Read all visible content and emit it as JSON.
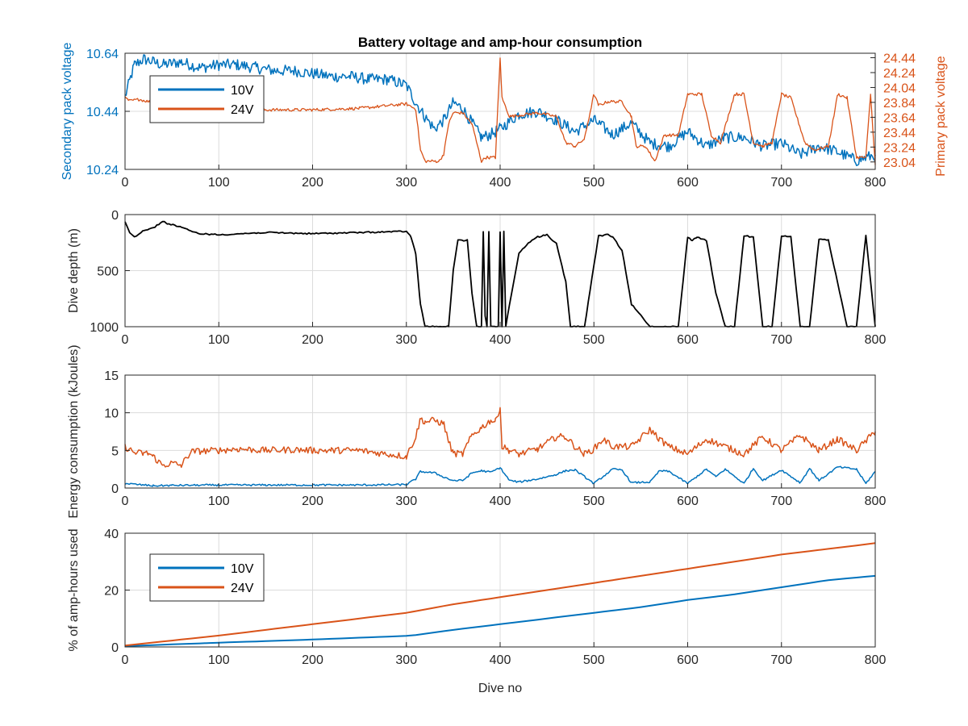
{
  "figure": {
    "title": "Battery voltage and amp-hour consumption",
    "x_axis_label": "Dive no"
  },
  "colors": {
    "series_10v": "#0072BD",
    "series_24v": "#D95319",
    "depth": "#000000",
    "axis": "#262626",
    "grid": "#dcdcdc"
  },
  "chart_data": [
    {
      "type": "line",
      "id": "voltage",
      "title": "Battery voltage and amp-hour consumption",
      "xlabel": "",
      "ylabel": "Secondary pack voltage",
      "ylabel_right": "Primary pack voltage",
      "xlim": [
        0,
        800
      ],
      "ylim": [
        10.24,
        10.64
      ],
      "ylim_right": [
        22.94,
        24.5
      ],
      "xticks": [
        0,
        100,
        200,
        300,
        400,
        500,
        600,
        700,
        800
      ],
      "yticks": [
        10.24,
        10.44,
        10.64
      ],
      "yticks_right": [
        23.04,
        23.24,
        23.44,
        23.64,
        23.84,
        24.04,
        24.24,
        24.44
      ],
      "grid": true,
      "legend": {
        "position": "top-left",
        "entries": [
          "10V",
          "24V"
        ]
      },
      "series": [
        {
          "name": "10V",
          "axis": "left",
          "x": [
            0,
            10,
            20,
            40,
            60,
            80,
            100,
            120,
            140,
            160,
            180,
            200,
            220,
            240,
            260,
            280,
            300,
            310,
            320,
            330,
            340,
            350,
            360,
            370,
            380,
            390,
            400,
            420,
            440,
            460,
            480,
            500,
            520,
            540,
            560,
            580,
            600,
            620,
            640,
            660,
            680,
            700,
            720,
            740,
            760,
            780,
            800
          ],
          "y": [
            10.49,
            10.6,
            10.62,
            10.6,
            10.61,
            10.59,
            10.6,
            10.6,
            10.59,
            10.58,
            10.58,
            10.57,
            10.56,
            10.56,
            10.55,
            10.55,
            10.53,
            10.47,
            10.42,
            10.38,
            10.41,
            10.47,
            10.45,
            10.4,
            10.35,
            10.36,
            10.38,
            10.43,
            10.44,
            10.41,
            10.37,
            10.41,
            10.36,
            10.4,
            10.33,
            10.32,
            10.37,
            10.32,
            10.35,
            10.35,
            10.32,
            10.33,
            10.29,
            10.32,
            10.3,
            10.27,
            10.29
          ]
        },
        {
          "name": "24V",
          "axis": "right",
          "x": [
            0,
            5,
            15,
            60,
            100,
            150,
            200,
            250,
            300,
            310,
            315,
            320,
            335,
            340,
            345,
            350,
            360,
            370,
            380,
            385,
            395,
            400,
            402,
            410,
            440,
            460,
            470,
            480,
            490,
            500,
            505,
            515,
            530,
            540,
            545,
            555,
            565,
            575,
            590,
            600,
            615,
            625,
            635,
            650,
            660,
            670,
            680,
            690,
            700,
            710,
            725,
            735,
            750,
            760,
            770,
            780,
            790,
            795,
            800
          ],
          "y": [
            23.9,
            23.86,
            23.88,
            23.75,
            23.74,
            23.74,
            23.74,
            23.76,
            23.82,
            23.75,
            23.2,
            23.05,
            23.05,
            23.15,
            23.55,
            23.7,
            23.7,
            23.55,
            23.05,
            23.1,
            23.1,
            24.44,
            23.9,
            23.65,
            23.7,
            23.65,
            23.3,
            23.25,
            23.35,
            23.95,
            23.8,
            23.85,
            23.85,
            23.65,
            23.25,
            23.25,
            23.05,
            23.4,
            23.4,
            23.95,
            23.95,
            23.4,
            23.3,
            23.95,
            23.95,
            23.3,
            23.25,
            23.3,
            23.95,
            23.9,
            23.3,
            23.2,
            23.25,
            23.95,
            23.9,
            23.1,
            23.1,
            23.95,
            23.0
          ]
        }
      ]
    },
    {
      "type": "line",
      "id": "depth",
      "xlabel": "",
      "ylabel": "Dive depth (m)",
      "xlim": [
        0,
        800
      ],
      "ylim": [
        0,
        1000
      ],
      "y_reversed": true,
      "xticks": [
        0,
        100,
        200,
        300,
        400,
        500,
        600,
        700,
        800
      ],
      "yticks": [
        0,
        500,
        1000
      ],
      "grid": true,
      "series": [
        {
          "x": [
            0,
            5,
            10,
            15,
            20,
            30,
            40,
            45,
            60,
            70,
            80,
            100,
            150,
            200,
            250,
            300,
            305,
            310,
            315,
            320,
            330,
            340,
            345,
            350,
            355,
            365,
            370,
            375,
            380,
            382,
            384,
            386,
            388,
            390,
            392,
            395,
            398,
            400,
            402,
            404,
            406,
            410,
            420,
            430,
            440,
            450,
            460,
            470,
            475,
            490,
            500,
            505,
            515,
            520,
            530,
            540,
            560,
            570,
            590,
            595,
            600,
            605,
            610,
            620,
            630,
            640,
            650,
            660,
            670,
            680,
            690,
            700,
            710,
            720,
            730,
            740,
            750,
            770,
            780,
            790,
            800
          ],
          "y": [
            60,
            160,
            200,
            170,
            140,
            120,
            60,
            80,
            110,
            150,
            170,
            180,
            160,
            170,
            160,
            150,
            200,
            350,
            800,
            1000,
            1000,
            1000,
            1000,
            500,
            230,
            230,
            700,
            1000,
            1000,
            150,
            900,
            1000,
            150,
            1000,
            1000,
            1000,
            1000,
            150,
            1000,
            150,
            1000,
            800,
            350,
            250,
            200,
            180,
            260,
            600,
            1000,
            1000,
            450,
            190,
            180,
            200,
            320,
            800,
            1000,
            1000,
            1000,
            600,
            200,
            230,
            200,
            230,
            700,
            1000,
            1000,
            190,
            200,
            1000,
            1000,
            190,
            200,
            1000,
            1000,
            220,
            230,
            1000,
            1000,
            180,
            1000
          ]
        }
      ]
    },
    {
      "type": "line",
      "id": "energy",
      "xlabel": "",
      "ylabel": "Energy consumption (kJoules)",
      "xlim": [
        0,
        800
      ],
      "ylim": [
        0,
        15
      ],
      "xticks": [
        0,
        100,
        200,
        300,
        400,
        500,
        600,
        700,
        800
      ],
      "yticks": [
        0,
        5,
        10,
        15
      ],
      "grid": true,
      "series": [
        {
          "name": "24V",
          "x": [
            0,
            10,
            20,
            25,
            30,
            40,
            50,
            60,
            70,
            80,
            100,
            120,
            150,
            180,
            200,
            220,
            250,
            280,
            300,
            310,
            315,
            320,
            330,
            340,
            345,
            350,
            360,
            370,
            380,
            390,
            395,
            400,
            402,
            410,
            420,
            440,
            460,
            470,
            480,
            490,
            500,
            510,
            520,
            540,
            560,
            570,
            580,
            600,
            610,
            620,
            640,
            660,
            680,
            700,
            720,
            740,
            760,
            780,
            800
          ],
          "y": [
            5.5,
            4.7,
            4.6,
            4.6,
            4.2,
            3.0,
            3.3,
            3.0,
            4.8,
            4.9,
            5.0,
            5.2,
            5.0,
            5.1,
            5.0,
            5.0,
            5.0,
            4.5,
            4.2,
            6.8,
            9.2,
            8.8,
            9.0,
            8.5,
            6.2,
            4.6,
            4.5,
            7.0,
            8.0,
            9.0,
            8.8,
            10.8,
            5.5,
            5.0,
            4.5,
            5.2,
            6.8,
            6.8,
            5.5,
            4.5,
            5.2,
            6.5,
            5.5,
            5.5,
            7.8,
            6.5,
            5.5,
            4.5,
            5.5,
            6.5,
            5.5,
            4.5,
            6.8,
            5.0,
            7.0,
            5.0,
            6.5,
            5.0,
            7.5
          ]
        },
        {
          "name": "10V",
          "x": [
            0,
            10,
            30,
            50,
            100,
            150,
            200,
            250,
            300,
            310,
            315,
            330,
            345,
            350,
            360,
            370,
            380,
            390,
            400,
            410,
            420,
            440,
            460,
            470,
            480,
            490,
            500,
            520,
            530,
            540,
            560,
            570,
            580,
            600,
            620,
            630,
            640,
            660,
            670,
            680,
            700,
            720,
            730,
            740,
            760,
            780,
            790,
            800
          ],
          "y": [
            0.6,
            0.5,
            0.3,
            0.35,
            0.4,
            0.4,
            0.4,
            0.4,
            0.45,
            1.2,
            2.2,
            2.0,
            1.2,
            1.0,
            1.0,
            2.0,
            2.3,
            2.1,
            2.7,
            1.0,
            0.8,
            1.2,
            1.8,
            2.3,
            2.4,
            1.5,
            0.6,
            2.5,
            2.4,
            0.7,
            0.8,
            2.3,
            2.2,
            0.6,
            2.5,
            1.5,
            2.5,
            0.6,
            2.6,
            1.0,
            2.4,
            0.7,
            2.6,
            1.0,
            2.8,
            2.5,
            0.6,
            2.2
          ]
        }
      ]
    },
    {
      "type": "line",
      "id": "amphours",
      "xlabel": "Dive no",
      "ylabel": "% of amp-hours used",
      "xlim": [
        0,
        800
      ],
      "ylim": [
        0,
        40
      ],
      "xticks": [
        0,
        100,
        200,
        300,
        400,
        500,
        600,
        700,
        800
      ],
      "yticks": [
        0,
        20,
        40
      ],
      "grid": true,
      "legend": {
        "position": "top-left",
        "entries": [
          "10V",
          "24V"
        ]
      },
      "series": [
        {
          "name": "10V",
          "x": [
            0,
            100,
            200,
            300,
            310,
            350,
            400,
            450,
            500,
            550,
            600,
            650,
            700,
            750,
            800
          ],
          "y": [
            0.3,
            1.5,
            2.6,
            3.9,
            4.2,
            6.0,
            8.0,
            10.0,
            12.0,
            14.0,
            16.5,
            18.5,
            21.0,
            23.5,
            25.0
          ]
        },
        {
          "name": "24V",
          "x": [
            0,
            100,
            200,
            300,
            350,
            400,
            450,
            500,
            550,
            600,
            650,
            700,
            750,
            800
          ],
          "y": [
            0.5,
            4.0,
            8.0,
            12.0,
            15.0,
            17.5,
            20.0,
            22.5,
            25.0,
            27.5,
            30.0,
            32.5,
            34.5,
            36.5
          ]
        }
      ]
    }
  ]
}
